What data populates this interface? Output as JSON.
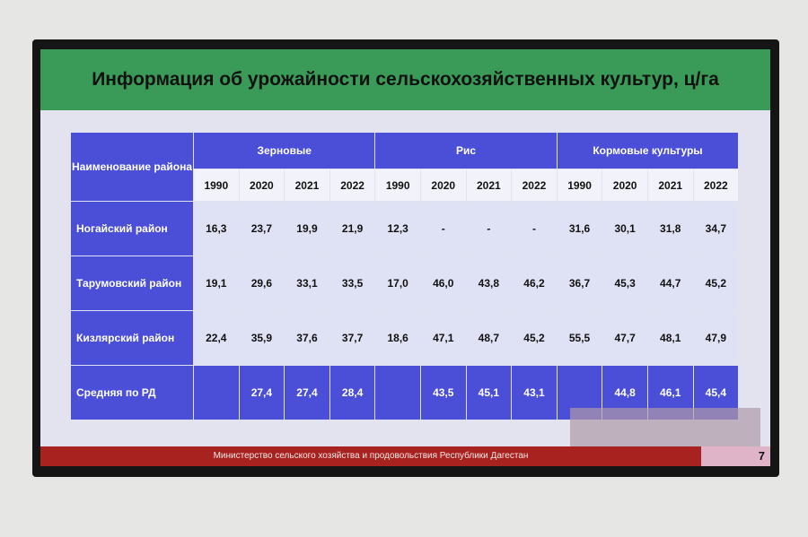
{
  "title": "Информация об урожайности сельскохозяйственных культур, ц/га",
  "table": {
    "header": {
      "name": "Наименование района",
      "groups": [
        "Зерновые",
        "Рис",
        "Кормовые культуры"
      ],
      "years": [
        "1990",
        "2020",
        "2021",
        "2022",
        "1990",
        "2020",
        "2021",
        "2022",
        "1990",
        "2020",
        "2021",
        "2022"
      ]
    },
    "rows": [
      [
        "Ногайский район",
        "16,3",
        "23,7",
        "19,9",
        "21,9",
        "12,3",
        "-",
        "-",
        "-",
        "31,6",
        "30,1",
        "31,8",
        "34,7"
      ],
      [
        "Тарумовский район",
        "19,1",
        "29,6",
        "33,1",
        "33,5",
        "17,0",
        "46,0",
        "43,8",
        "46,2",
        "36,7",
        "45,3",
        "44,7",
        "45,2"
      ],
      [
        "Кизлярский район",
        "22,4",
        "35,9",
        "37,6",
        "37,7",
        "18,6",
        "47,1",
        "48,7",
        "45,2",
        "55,5",
        "47,7",
        "48,1",
        "47,9"
      ],
      [
        "Средняя по РД",
        null,
        "27,4",
        "27,4",
        "28,4",
        null,
        "43,5",
        "45,1",
        "43,1",
        null,
        "44,8",
        "46,1",
        "45,4"
      ]
    ]
  },
  "footer": "Министерство сельского хозяйства и продовольствия Республики Дагестан",
  "page_number": "7"
}
